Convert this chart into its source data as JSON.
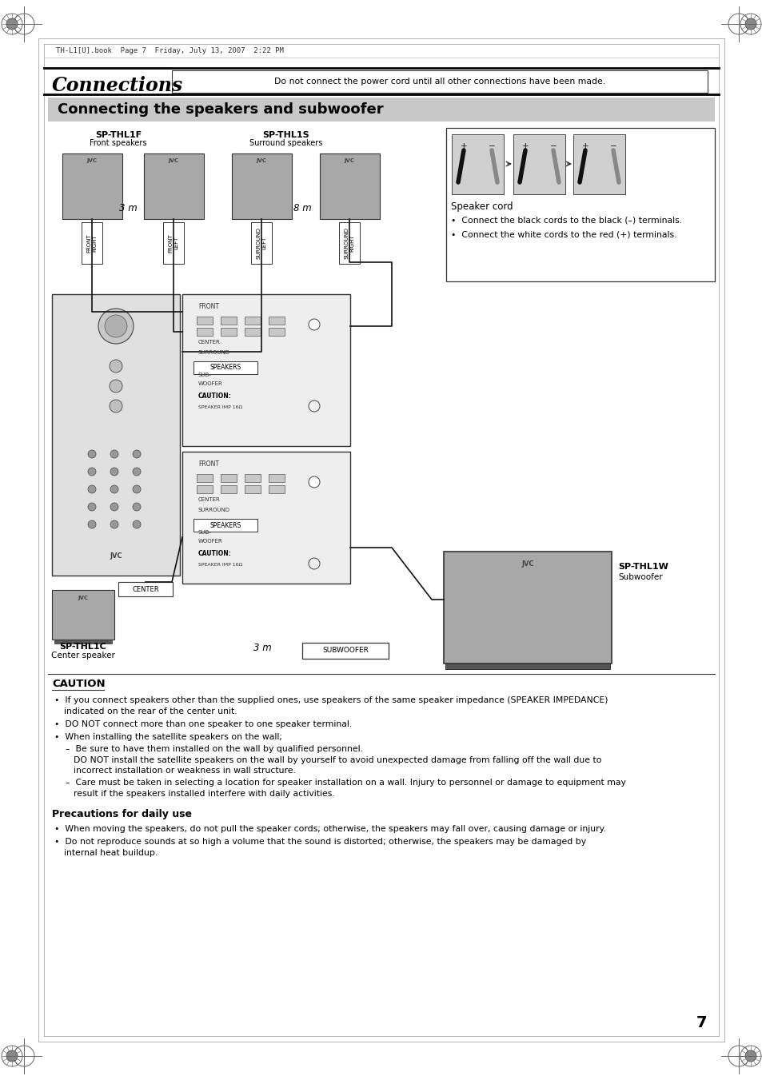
{
  "bg_color": "#ffffff",
  "header_text": "TH-L1[U].book  Page 7  Friday, July 13, 2007  2:22 PM",
  "title_main": "Connections",
  "title_box_text": "Do not connect the power cord until all other connections have been made.",
  "section_title": "Connecting the speakers and subwoofer",
  "section_bg": "#c8c8c8",
  "sp_thl1f_label": "SP-THL1F",
  "sp_thl1f_sub": "Front speakers",
  "sp_thl1s_label": "SP-THL1S",
  "sp_thl1s_sub": "Surround speakers",
  "sp_thl1c_label": "SP-THL1C",
  "sp_thl1c_sub": "Center speaker",
  "sp_thl1w_label": "SP-THL1W",
  "sp_thl1w_sub": "Subwoofer",
  "cable_3m_1": "3 m",
  "cable_8m": "8 m",
  "cable_3m_2": "3 m",
  "center_label": "CENTER",
  "subwoofer_label": "SUBWOOFER",
  "speaker_cord_title": "Speaker cord",
  "speaker_cord_b1": "•  Connect the black cords to the black (–) terminals.",
  "speaker_cord_b2": "•  Connect the white cords to the red (+) terminals.",
  "caution_title": "CAUTION",
  "caution_b1": "If you connect speakers other than the supplied ones, use speakers of the same speaker impedance (SPEAKER IMPEDANCE)",
  "caution_b1b": "indicated on the rear of the center unit.",
  "caution_b2": "DO NOT connect more than one speaker to one speaker terminal.",
  "caution_b3": "When installing the satellite speakers on the wall;",
  "caution_sub1a": "Be sure to have them installed on the wall by qualified personnel.",
  "caution_sub1b": "DO NOT install the satellite speakers on the wall by yourself to avoid unexpected damage from falling off the wall due to",
  "caution_sub1c": "incorrect installation or weakness in wall structure.",
  "caution_sub2a": "Care must be taken in selecting a location for speaker installation on a wall. Injury to personnel or damage to equipment may",
  "caution_sub2b": "result if the speakers installed interfere with daily activities.",
  "precautions_title": "Precautions for daily use",
  "prec_b1": "When moving the speakers, do not pull the speaker cords; otherwise, the speakers may fall over, causing damage or injury.",
  "prec_b2": "Do not reproduce sounds at so high a volume that the sound is distorted; otherwise, the speakers may be damaged by",
  "prec_b2b": "internal heat buildup.",
  "page_number": "7",
  "gray_speaker": "#a8a8a8",
  "gray_amp": "#e0e0e0",
  "gray_panel": "#eeeeee",
  "gray_subwoofer": "#a8a8a8"
}
